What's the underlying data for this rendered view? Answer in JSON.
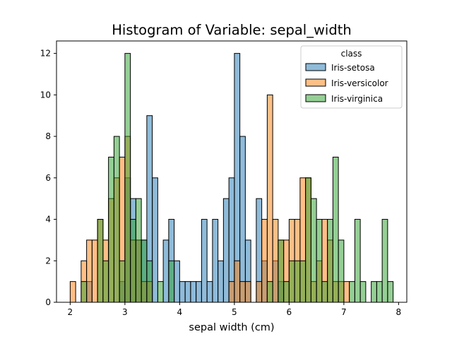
{
  "chart_data": {
    "type": "histogram",
    "title": "Histogram of Variable: sepal_width",
    "xlabel": "sepal width (cm)",
    "ylabel": "",
    "xlim": [
      1.75,
      8.15
    ],
    "ylim": [
      0,
      12.6
    ],
    "xticks": [
      2,
      3,
      4,
      5,
      6,
      7,
      8
    ],
    "yticks": [
      0,
      2,
      4,
      6,
      8,
      10,
      12
    ],
    "grid": false,
    "bin_width": 0.1,
    "legend": {
      "title": "class",
      "placement": "top-right",
      "entries": [
        "Iris-setosa",
        "Iris-versicolor",
        "Iris-virginica"
      ]
    },
    "series": [
      {
        "name": "Iris-setosa",
        "color": "#1f77b4",
        "bins": [
          {
            "x0": 2.3,
            "count": 1
          },
          {
            "x0": 2.9,
            "count": 1
          },
          {
            "x0": 3.0,
            "count": 6
          },
          {
            "x0": 3.1,
            "count": 5
          },
          {
            "x0": 3.2,
            "count": 3
          },
          {
            "x0": 3.3,
            "count": 3
          },
          {
            "x0": 3.4,
            "count": 9
          },
          {
            "x0": 3.5,
            "count": 6
          },
          {
            "x0": 3.7,
            "count": 3
          },
          {
            "x0": 3.8,
            "count": 4
          },
          {
            "x0": 3.9,
            "count": 2
          },
          {
            "x0": 4.0,
            "count": 1
          },
          {
            "x0": 4.1,
            "count": 1
          },
          {
            "x0": 4.2,
            "count": 1
          },
          {
            "x0": 4.3,
            "count": 1
          },
          {
            "x0": 4.4,
            "count": 4
          },
          {
            "x0": 4.5,
            "count": 1
          },
          {
            "x0": 4.6,
            "count": 4
          },
          {
            "x0": 4.7,
            "count": 2
          },
          {
            "x0": 4.8,
            "count": 5
          },
          {
            "x0": 4.9,
            "count": 6
          },
          {
            "x0": 5.0,
            "count": 12
          },
          {
            "x0": 5.1,
            "count": 8
          },
          {
            "x0": 5.2,
            "count": 3
          },
          {
            "x0": 5.4,
            "count": 5
          },
          {
            "x0": 5.5,
            "count": 2
          },
          {
            "x0": 5.7,
            "count": 2
          },
          {
            "x0": 5.8,
            "count": 1
          }
        ]
      },
      {
        "name": "Iris-versicolor",
        "color": "#ff7f0e",
        "bins": [
          {
            "x0": 2.0,
            "count": 1
          },
          {
            "x0": 2.2,
            "count": 2
          },
          {
            "x0": 2.3,
            "count": 3
          },
          {
            "x0": 2.4,
            "count": 3
          },
          {
            "x0": 2.5,
            "count": 4
          },
          {
            "x0": 2.6,
            "count": 3
          },
          {
            "x0": 2.7,
            "count": 5
          },
          {
            "x0": 2.8,
            "count": 6
          },
          {
            "x0": 2.9,
            "count": 7
          },
          {
            "x0": 3.0,
            "count": 8
          },
          {
            "x0": 3.1,
            "count": 3
          },
          {
            "x0": 3.2,
            "count": 3
          },
          {
            "x0": 3.3,
            "count": 1
          },
          {
            "x0": 3.4,
            "count": 1
          },
          {
            "x0": 4.9,
            "count": 1
          },
          {
            "x0": 5.0,
            "count": 2
          },
          {
            "x0": 5.1,
            "count": 1
          },
          {
            "x0": 5.2,
            "count": 1
          },
          {
            "x0": 5.4,
            "count": 1
          },
          {
            "x0": 5.5,
            "count": 4
          },
          {
            "x0": 5.6,
            "count": 10
          },
          {
            "x0": 5.7,
            "count": 4
          },
          {
            "x0": 5.8,
            "count": 3
          },
          {
            "x0": 5.9,
            "count": 3
          },
          {
            "x0": 6.0,
            "count": 4
          },
          {
            "x0": 6.1,
            "count": 4
          },
          {
            "x0": 6.2,
            "count": 6
          },
          {
            "x0": 6.3,
            "count": 6
          },
          {
            "x0": 6.4,
            "count": 1
          },
          {
            "x0": 6.5,
            "count": 2
          },
          {
            "x0": 6.6,
            "count": 4
          },
          {
            "x0": 6.7,
            "count": 3
          },
          {
            "x0": 6.8,
            "count": 1
          },
          {
            "x0": 6.9,
            "count": 1
          },
          {
            "x0": 7.0,
            "count": 1
          }
        ]
      },
      {
        "name": "Iris-virginica",
        "color": "#2ca02c",
        "bins": [
          {
            "x0": 2.2,
            "count": 1
          },
          {
            "x0": 2.5,
            "count": 4
          },
          {
            "x0": 2.6,
            "count": 2
          },
          {
            "x0": 2.7,
            "count": 7
          },
          {
            "x0": 2.8,
            "count": 8
          },
          {
            "x0": 2.9,
            "count": 2
          },
          {
            "x0": 3.0,
            "count": 12
          },
          {
            "x0": 3.1,
            "count": 4
          },
          {
            "x0": 3.2,
            "count": 5
          },
          {
            "x0": 3.3,
            "count": 3
          },
          {
            "x0": 3.4,
            "count": 2
          },
          {
            "x0": 3.6,
            "count": 1
          },
          {
            "x0": 3.8,
            "count": 2
          },
          {
            "x0": 5.6,
            "count": 1
          },
          {
            "x0": 5.8,
            "count": 3
          },
          {
            "x0": 5.9,
            "count": 1
          },
          {
            "x0": 6.0,
            "count": 2
          },
          {
            "x0": 6.1,
            "count": 2
          },
          {
            "x0": 6.2,
            "count": 2
          },
          {
            "x0": 6.3,
            "count": 6
          },
          {
            "x0": 6.4,
            "count": 5
          },
          {
            "x0": 6.5,
            "count": 4
          },
          {
            "x0": 6.6,
            "count": 1
          },
          {
            "x0": 6.7,
            "count": 4
          },
          {
            "x0": 6.8,
            "count": 7
          },
          {
            "x0": 6.9,
            "count": 3
          },
          {
            "x0": 7.1,
            "count": 1
          },
          {
            "x0": 7.2,
            "count": 4
          },
          {
            "x0": 7.3,
            "count": 1
          },
          {
            "x0": 7.5,
            "count": 1
          },
          {
            "x0": 7.6,
            "count": 1
          },
          {
            "x0": 7.7,
            "count": 4
          },
          {
            "x0": 7.8,
            "count": 1
          }
        ]
      }
    ]
  }
}
